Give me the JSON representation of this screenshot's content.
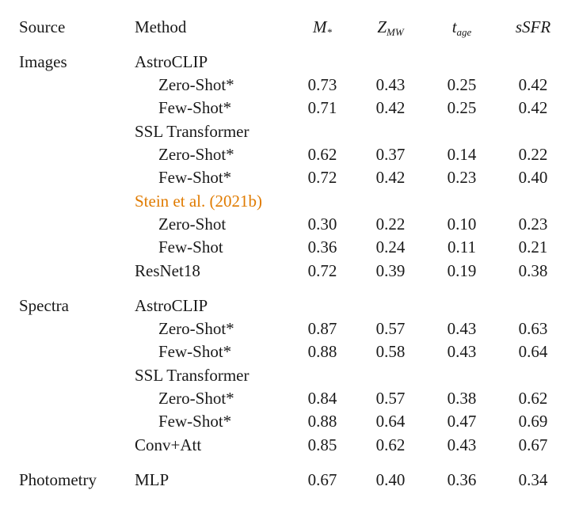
{
  "header": {
    "source": "Source",
    "method": "Method",
    "col1": "M",
    "col1_sub": "*",
    "col2": "Z",
    "col2_sub": "MW",
    "col3": "t",
    "col3_sub": "age",
    "col4": "sSFR"
  },
  "rows": [
    {
      "source": "Images",
      "method": "AstroCLIP",
      "values": [
        "",
        "",
        "",
        ""
      ]
    },
    {
      "source": "",
      "method": "Zero-Shot*",
      "values": [
        "0.73",
        "0.43",
        "0.25",
        "0.42"
      ]
    },
    {
      "source": "",
      "method": "Few-Shot*",
      "values": [
        "0.71",
        "0.42",
        "0.25",
        "0.42"
      ]
    },
    {
      "source": "",
      "method": "SSL Transformer",
      "values": [
        "",
        "",
        "",
        ""
      ]
    },
    {
      "source": "",
      "method": "Zero-Shot*",
      "values": [
        "0.62",
        "0.37",
        "0.14",
        "0.22"
      ]
    },
    {
      "source": "",
      "method": "Few-Shot*",
      "values": [
        "0.72",
        "0.42",
        "0.23",
        "0.40"
      ]
    },
    {
      "source": "",
      "method": "Stein et al. (2021b)",
      "values": [
        "",
        "",
        "",
        ""
      ]
    },
    {
      "source": "",
      "method": "Zero-Shot",
      "values": [
        "0.30",
        "0.22",
        "0.10",
        "0.23"
      ]
    },
    {
      "source": "",
      "method": "Few-Shot",
      "values": [
        "0.36",
        "0.24",
        "0.11",
        "0.21"
      ]
    },
    {
      "source": "",
      "method": "ResNet18",
      "values": [
        "0.72",
        "0.39",
        "0.19",
        "0.38"
      ]
    },
    {
      "source": "Spectra",
      "method": "AstroCLIP",
      "values": [
        "",
        "",
        "",
        ""
      ]
    },
    {
      "source": "",
      "method": "Zero-Shot*",
      "values": [
        "0.87",
        "0.57",
        "0.43",
        "0.63"
      ]
    },
    {
      "source": "",
      "method": "Few-Shot*",
      "values": [
        "0.88",
        "0.58",
        "0.43",
        "0.64"
      ]
    },
    {
      "source": "",
      "method": "SSL Transformer",
      "values": [
        "",
        "",
        "",
        ""
      ]
    },
    {
      "source": "",
      "method": "Zero-Shot*",
      "values": [
        "0.84",
        "0.57",
        "0.38",
        "0.62"
      ]
    },
    {
      "source": "",
      "method": "Few-Shot*",
      "values": [
        "0.88",
        "0.64",
        "0.47",
        "0.69"
      ]
    },
    {
      "source": "",
      "method": "Conv+Att",
      "values": [
        "0.85",
        "0.62",
        "0.43",
        "0.67"
      ]
    },
    {
      "source": "Photometry",
      "method": "MLP",
      "values": [
        "0.67",
        "0.40",
        "0.36",
        "0.34"
      ]
    }
  ],
  "colors": {
    "text": "#1a1a1a",
    "citation": "#e07b00"
  }
}
